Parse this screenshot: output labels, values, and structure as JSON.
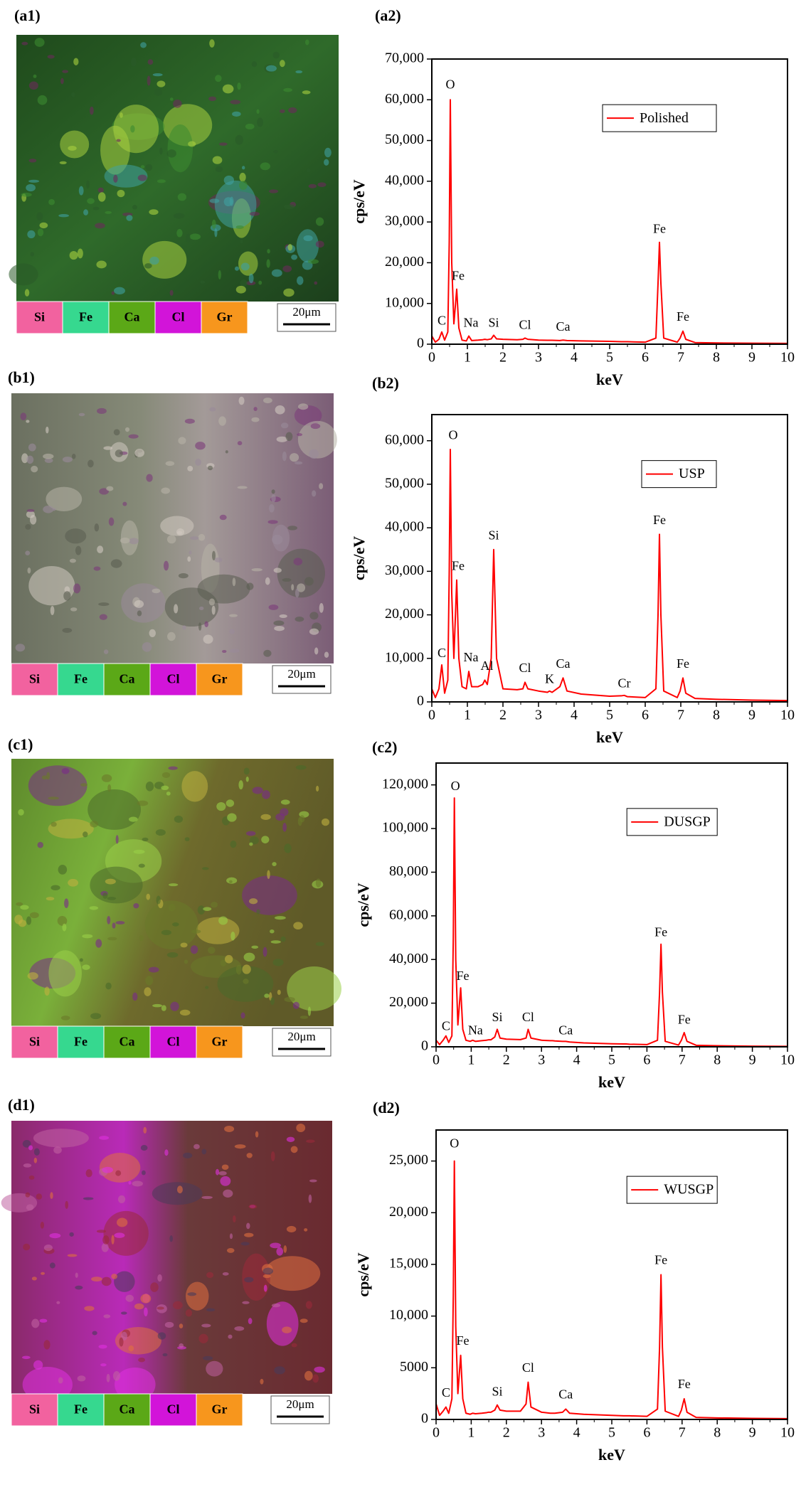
{
  "panels": [
    {
      "label": "(a1)",
      "elements": [
        {
          "name": "Si",
          "color": "#f2629f"
        },
        {
          "name": "Fe",
          "color": "#36d88f"
        },
        {
          "name": "Ca",
          "color": "#5ba817"
        },
        {
          "name": "Cl",
          "color": "#d214d9"
        },
        {
          "name": "Gr",
          "color": "#f7961d"
        }
      ],
      "scale_bar": "20μm"
    },
    {
      "label": "(b1)",
      "elements": [
        {
          "name": "Si",
          "color": "#f2629f"
        },
        {
          "name": "Fe",
          "color": "#36d88f"
        },
        {
          "name": "Ca",
          "color": "#5ba817"
        },
        {
          "name": "Cl",
          "color": "#d214d9"
        },
        {
          "name": "Gr",
          "color": "#f7961d"
        }
      ],
      "scale_bar": "20μm"
    },
    {
      "label": "(c1)",
      "elements": [
        {
          "name": "Si",
          "color": "#f2629f"
        },
        {
          "name": "Fe",
          "color": "#36d88f"
        },
        {
          "name": "Ca",
          "color": "#5ba817"
        },
        {
          "name": "Cl",
          "color": "#d214d9"
        },
        {
          "name": "Gr",
          "color": "#f7961d"
        }
      ],
      "scale_bar": "20μm"
    },
    {
      "label": "(d1)",
      "elements": [
        {
          "name": "Si",
          "color": "#f2629f"
        },
        {
          "name": "Fe",
          "color": "#36d88f"
        },
        {
          "name": "Ca",
          "color": "#5ba817"
        },
        {
          "name": "Cl",
          "color": "#d214d9"
        },
        {
          "name": "Gr",
          "color": "#f7961d"
        }
      ],
      "scale_bar": "20μm"
    }
  ],
  "chart_data": [
    {
      "type": "line",
      "title": "(a2)",
      "xlabel": "keV",
      "ylabel": "cps/eV",
      "legend": "upper right",
      "x": [
        0,
        0.1,
        0.2,
        0.28,
        0.36,
        0.45,
        0.49,
        0.52,
        0.56,
        0.62,
        0.7,
        0.76,
        0.85,
        0.97,
        1.04,
        1.12,
        1.3,
        1.43,
        1.49,
        1.56,
        1.67,
        1.74,
        1.82,
        2.0,
        2.4,
        2.56,
        2.62,
        2.7,
        3.0,
        3.25,
        3.31,
        3.38,
        3.6,
        3.69,
        3.8,
        4.2,
        5.0,
        5.33,
        5.41,
        5.5,
        6.0,
        6.3,
        6.36,
        6.4,
        6.44,
        6.52,
        6.9,
        6.98,
        7.06,
        7.14,
        7.4,
        8.0,
        9.0,
        10.0
      ],
      "xlim": [
        0,
        10
      ],
      "xticks": [
        0,
        1,
        2,
        3,
        4,
        5,
        6,
        7,
        8,
        9,
        10
      ],
      "ylim": [
        0,
        70000
      ],
      "yticks": [
        0,
        {
          "value": 10000,
          "label": "10,000"
        },
        {
          "value": 20000,
          "label": "20,000"
        },
        {
          "value": 30000,
          "label": "30,000"
        },
        {
          "value": 40000,
          "label": "40,000"
        },
        {
          "value": 50000,
          "label": "50,000"
        },
        {
          "value": 60000,
          "label": "60,000"
        },
        {
          "value": 70000,
          "label": "70,000"
        }
      ],
      "series": [
        {
          "name": "Polished",
          "color": "#ff0000",
          "values": [
            2000,
            500,
            1200,
            3000,
            1000,
            3000,
            25000,
            60000,
            20000,
            5000,
            13500,
            4000,
            1000,
            800,
            2000,
            900,
            1000,
            1100,
            1200,
            1100,
            1300,
            2200,
            1300,
            1200,
            1100,
            1200,
            1500,
            1200,
            1000,
            950,
            950,
            950,
            900,
            1000,
            900,
            800,
            700,
            600,
            600,
            600,
            500,
            1500,
            15000,
            25000,
            15000,
            1500,
            500,
            1500,
            3200,
            1200,
            400,
            300,
            250,
            200
          ]
        }
      ],
      "annotations": [
        {
          "text": "C",
          "x": 0.28,
          "y": 5500
        },
        {
          "text": "O",
          "x": 0.52,
          "y": 63500
        },
        {
          "text": "Fe",
          "x": 0.74,
          "y": 16500
        },
        {
          "text": "Na",
          "x": 1.1,
          "y": 5000
        },
        {
          "text": "Si",
          "x": 1.74,
          "y": 5000
        },
        {
          "text": "Cl",
          "x": 2.62,
          "y": 4500
        },
        {
          "text": "Ca",
          "x": 3.69,
          "y": 4000
        },
        {
          "text": "Fe",
          "x": 6.4,
          "y": 28000
        },
        {
          "text": "Fe",
          "x": 7.06,
          "y": 6500
        }
      ]
    },
    {
      "type": "line",
      "title": "(b2)",
      "xlabel": "keV",
      "ylabel": "cps/eV",
      "legend": "upper right",
      "x": [
        0,
        0.1,
        0.2,
        0.28,
        0.36,
        0.45,
        0.49,
        0.52,
        0.56,
        0.62,
        0.7,
        0.76,
        0.85,
        0.97,
        1.04,
        1.12,
        1.3,
        1.43,
        1.49,
        1.56,
        1.67,
        1.74,
        1.82,
        2.0,
        2.4,
        2.56,
        2.62,
        2.7,
        3.0,
        3.25,
        3.31,
        3.38,
        3.6,
        3.69,
        3.8,
        4.2,
        5.0,
        5.33,
        5.41,
        5.5,
        6.0,
        6.3,
        6.36,
        6.4,
        6.44,
        6.52,
        6.9,
        6.98,
        7.06,
        7.14,
        7.4,
        8.0,
        9.0,
        10.0
      ],
      "xlim": [
        0,
        10
      ],
      "xticks": [
        0,
        1,
        2,
        3,
        4,
        5,
        6,
        7,
        8,
        9,
        10
      ],
      "ylim": [
        0,
        66000
      ],
      "yticks": [
        0,
        {
          "value": 10000,
          "label": "10,000"
        },
        {
          "value": 20000,
          "label": "20,000"
        },
        {
          "value": 30000,
          "label": "30,000"
        },
        {
          "value": 40000,
          "label": "40,000"
        },
        {
          "value": 50000,
          "label": "50,000"
        },
        {
          "value": 60000,
          "label": "60,000"
        }
      ],
      "series": [
        {
          "name": "USP",
          "color": "#ff0000",
          "values": [
            3000,
            1000,
            3000,
            8500,
            2000,
            5000,
            30000,
            58000,
            25000,
            10000,
            28000,
            10000,
            3500,
            3000,
            7000,
            3500,
            3500,
            4000,
            5000,
            4000,
            10000,
            35000,
            10000,
            3000,
            2800,
            3000,
            4500,
            3000,
            2500,
            2200,
            2500,
            2200,
            3500,
            5500,
            2500,
            1800,
            1300,
            1400,
            1500,
            1200,
            1000,
            3000,
            20000,
            38500,
            20000,
            2500,
            1000,
            2500,
            5500,
            2000,
            800,
            600,
            400,
            300
          ]
        }
      ],
      "annotations": [
        {
          "text": "C",
          "x": 0.28,
          "y": 11000
        },
        {
          "text": "O",
          "x": 0.6,
          "y": 61000
        },
        {
          "text": "Fe",
          "x": 0.74,
          "y": 31000
        },
        {
          "text": "Na",
          "x": 1.1,
          "y": 10000
        },
        {
          "text": "Al",
          "x": 1.55,
          "y": 8000
        },
        {
          "text": "Si",
          "x": 1.74,
          "y": 38000
        },
        {
          "text": "Cl",
          "x": 2.62,
          "y": 7500
        },
        {
          "text": "K",
          "x": 3.31,
          "y": 5000
        },
        {
          "text": "Ca",
          "x": 3.69,
          "y": 8500
        },
        {
          "text": "Cr",
          "x": 5.41,
          "y": 4000
        },
        {
          "text": "Fe",
          "x": 6.4,
          "y": 41500
        },
        {
          "text": "Fe",
          "x": 7.06,
          "y": 8500
        }
      ]
    },
    {
      "type": "line",
      "title": "(c2)",
      "xlabel": "keV",
      "ylabel": "cps/eV",
      "legend": "upper right",
      "x": [
        0,
        0.1,
        0.2,
        0.28,
        0.36,
        0.45,
        0.49,
        0.52,
        0.56,
        0.62,
        0.7,
        0.76,
        0.85,
        0.97,
        1.04,
        1.12,
        1.3,
        1.43,
        1.49,
        1.56,
        1.67,
        1.74,
        1.82,
        2.0,
        2.4,
        2.56,
        2.62,
        2.7,
        3.0,
        3.25,
        3.31,
        3.38,
        3.6,
        3.69,
        3.8,
        4.2,
        5.0,
        5.33,
        5.41,
        5.5,
        6.0,
        6.3,
        6.36,
        6.4,
        6.44,
        6.52,
        6.9,
        6.98,
        7.06,
        7.14,
        7.4,
        8.0,
        9.0,
        10.0
      ],
      "xlim": [
        0,
        10
      ],
      "xticks": [
        0,
        1,
        2,
        3,
        4,
        5,
        6,
        7,
        8,
        9,
        10
      ],
      "ylim": [
        0,
        130000
      ],
      "yticks": [
        0,
        {
          "value": 20000,
          "label": "20,000"
        },
        {
          "value": 40000,
          "label": "40,000"
        },
        {
          "value": 60000,
          "label": "60,000"
        },
        {
          "value": 80000,
          "label": "80,000"
        },
        {
          "value": 100000,
          "label": "100,000"
        },
        {
          "value": 120000,
          "label": "120,000"
        }
      ],
      "series": [
        {
          "name": "DUSGP",
          "color": "#ff0000",
          "values": [
            3000,
            1000,
            3000,
            5000,
            2000,
            5000,
            50000,
            114000,
            40000,
            10000,
            27000,
            8000,
            3000,
            2500,
            3000,
            2500,
            2800,
            3000,
            3200,
            3200,
            4500,
            8000,
            4000,
            3500,
            3300,
            4000,
            8000,
            4000,
            3000,
            2800,
            2800,
            2700,
            2500,
            2500,
            2200,
            1800,
            1400,
            1300,
            1300,
            1200,
            1000,
            3000,
            25000,
            47000,
            25000,
            2500,
            800,
            3000,
            6500,
            2500,
            700,
            500,
            300,
            200
          ]
        }
      ],
      "annotations": [
        {
          "text": "C",
          "x": 0.28,
          "y": 9000
        },
        {
          "text": "O",
          "x": 0.55,
          "y": 119000
        },
        {
          "text": "Fe",
          "x": 0.76,
          "y": 32000
        },
        {
          "text": "Na",
          "x": 1.12,
          "y": 7000
        },
        {
          "text": "Si",
          "x": 1.74,
          "y": 13000
        },
        {
          "text": "Cl",
          "x": 2.62,
          "y": 13000
        },
        {
          "text": "Ca",
          "x": 3.69,
          "y": 7000
        },
        {
          "text": "Fe",
          "x": 6.4,
          "y": 52000
        },
        {
          "text": "Fe",
          "x": 7.06,
          "y": 12000
        }
      ]
    },
    {
      "type": "line",
      "title": "(d2)",
      "xlabel": "keV",
      "ylabel": "cps/eV",
      "legend": "upper right",
      "x": [
        0,
        0.1,
        0.2,
        0.28,
        0.36,
        0.45,
        0.49,
        0.52,
        0.56,
        0.62,
        0.7,
        0.76,
        0.85,
        0.97,
        1.04,
        1.12,
        1.3,
        1.43,
        1.49,
        1.56,
        1.67,
        1.74,
        1.82,
        2.0,
        2.4,
        2.56,
        2.62,
        2.7,
        3.0,
        3.25,
        3.31,
        3.38,
        3.6,
        3.69,
        3.8,
        4.2,
        5.0,
        5.33,
        5.41,
        5.5,
        6.0,
        6.3,
        6.36,
        6.4,
        6.44,
        6.52,
        6.9,
        6.98,
        7.06,
        7.14,
        7.4,
        8.0,
        9.0,
        10.0
      ],
      "xlim": [
        0,
        10
      ],
      "xticks": [
        0,
        1,
        2,
        3,
        4,
        5,
        6,
        7,
        8,
        9,
        10
      ],
      "ylim": [
        0,
        28000
      ],
      "yticks": [
        0,
        5000,
        {
          "value": 10000,
          "label": "10,000"
        },
        {
          "value": 15000,
          "label": "15,000"
        },
        {
          "value": 20000,
          "label": "20,000"
        },
        {
          "value": 25000,
          "label": "25,000"
        }
      ],
      "series": [
        {
          "name": "WUSGP",
          "color": "#ff0000",
          "values": [
            1500,
            400,
            800,
            1200,
            600,
            2000,
            12000,
            25000,
            9000,
            2500,
            6200,
            2000,
            600,
            500,
            600,
            550,
            600,
            650,
            700,
            700,
            900,
            1400,
            900,
            800,
            800,
            1500,
            3600,
            1200,
            700,
            600,
            600,
            600,
            700,
            1000,
            600,
            500,
            400,
            350,
            350,
            350,
            300,
            1000,
            7000,
            14000,
            7000,
            800,
            300,
            900,
            2000,
            700,
            200,
            150,
            100,
            80
          ]
        }
      ],
      "annotations": [
        {
          "text": "C",
          "x": 0.28,
          "y": 2500
        },
        {
          "text": "O",
          "x": 0.52,
          "y": 26600
        },
        {
          "text": "Fe",
          "x": 0.76,
          "y": 7500
        },
        {
          "text": "Si",
          "x": 1.74,
          "y": 2600
        },
        {
          "text": "Cl",
          "x": 2.62,
          "y": 4900
        },
        {
          "text": "Ca",
          "x": 3.69,
          "y": 2300
        },
        {
          "text": "Fe",
          "x": 6.4,
          "y": 15300
        },
        {
          "text": "Fe",
          "x": 7.06,
          "y": 3300
        }
      ]
    }
  ]
}
